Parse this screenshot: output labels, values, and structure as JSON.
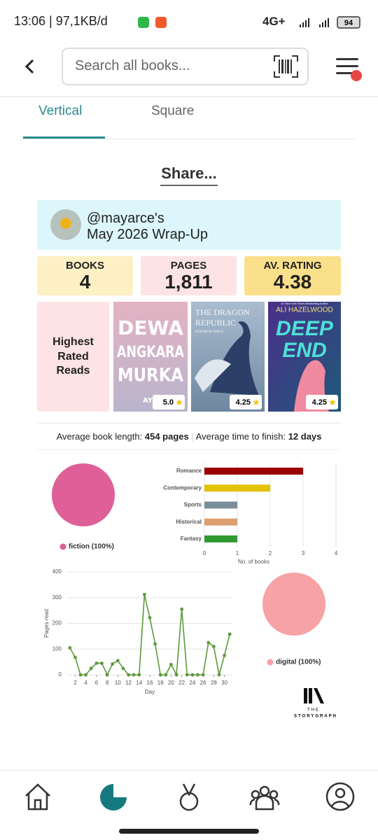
{
  "status_bar": {
    "left": "13:06 | 97,1KB/d",
    "network": "4G+",
    "battery": "94"
  },
  "search_placeholder": "Search all books...",
  "tabs": [
    "Vertical",
    "Square"
  ],
  "share": "Share...",
  "wrap_up": {
    "user": "@mayarce's",
    "title": "May 2026 Wrap-Up",
    "stats": [
      {
        "label": "BOOKS",
        "value": 4
      },
      {
        "label": "PAGES",
        "value": "1,811"
      },
      {
        "label": "AV. RATING",
        "value": 4.38
      }
    ],
    "highest_rated_label": "Highest Rated Reads",
    "books": [
      {
        "cover_text": [
          "DEWA",
          "ANGKARA",
          "MURKA",
          "AYA WI"
        ],
        "rating": "5.0"
      },
      {
        "cover_text": [
          "THE DRAGON",
          "REPUBLIC",
          "REPUBLIK NAGA"
        ],
        "rating": 4.25
      },
      {
        "cover_text": [
          "#1 New York Times Bestselling Author",
          "ALI HAZELWOOD",
          "DEEP",
          "END"
        ],
        "rating": 4.25
      }
    ],
    "summary": {
      "length_label": "Average book length:",
      "length_value": "454 pages",
      "time_label": "Average time to finish:",
      "time_value": "12 days"
    },
    "logo": [
      "THE",
      "STORYGRAPH"
    ]
  },
  "chart_data": [
    {
      "type": "pie",
      "labels": [
        "fiction (100%)"
      ],
      "values": [
        100
      ],
      "colors": [
        "#df5f98"
      ]
    },
    {
      "type": "bar",
      "orientation": "horizontal",
      "categories": [
        "Romance",
        "Contemporary",
        "Sports",
        "Historical",
        "Fantasy"
      ],
      "values": [
        3,
        2,
        1,
        1,
        1
      ],
      "colors": [
        "#990000",
        "#e3c200",
        "#7a8e9c",
        "#dea071",
        "#2f9a2f"
      ],
      "xlim": [
        0,
        4
      ],
      "xticks": [
        0,
        1,
        2,
        3,
        4
      ],
      "xlabel": "No. of books",
      "grid": true
    },
    {
      "type": "line",
      "x": [
        1,
        2,
        3,
        4,
        5,
        6,
        7,
        8,
        9,
        10,
        11,
        12,
        13,
        14,
        15,
        16,
        17,
        18,
        19,
        20,
        21,
        22,
        23,
        24,
        25,
        26,
        27,
        28,
        29,
        30,
        31
      ],
      "values": [
        105,
        68,
        0,
        0,
        25,
        45,
        45,
        0,
        42,
        55,
        25,
        0,
        0,
        0,
        312,
        222,
        120,
        0,
        0,
        40,
        0,
        255,
        0,
        0,
        0,
        0,
        125,
        110,
        0,
        75,
        158
      ],
      "color": "#5b9a3c",
      "xlim": [
        0.5,
        31.5
      ],
      "ylim": [
        0,
        400
      ],
      "xticks": [
        2,
        4,
        6,
        8,
        10,
        12,
        14,
        16,
        18,
        20,
        22,
        24,
        26,
        28,
        30
      ],
      "yticks": [
        0,
        100,
        200,
        300,
        400
      ],
      "xlabel": "Day",
      "ylabel": "Pages read",
      "grid": true
    },
    {
      "type": "pie",
      "labels": [
        "digital (100%)"
      ],
      "values": [
        100
      ],
      "colors": [
        "#f7a2a4"
      ]
    }
  ]
}
